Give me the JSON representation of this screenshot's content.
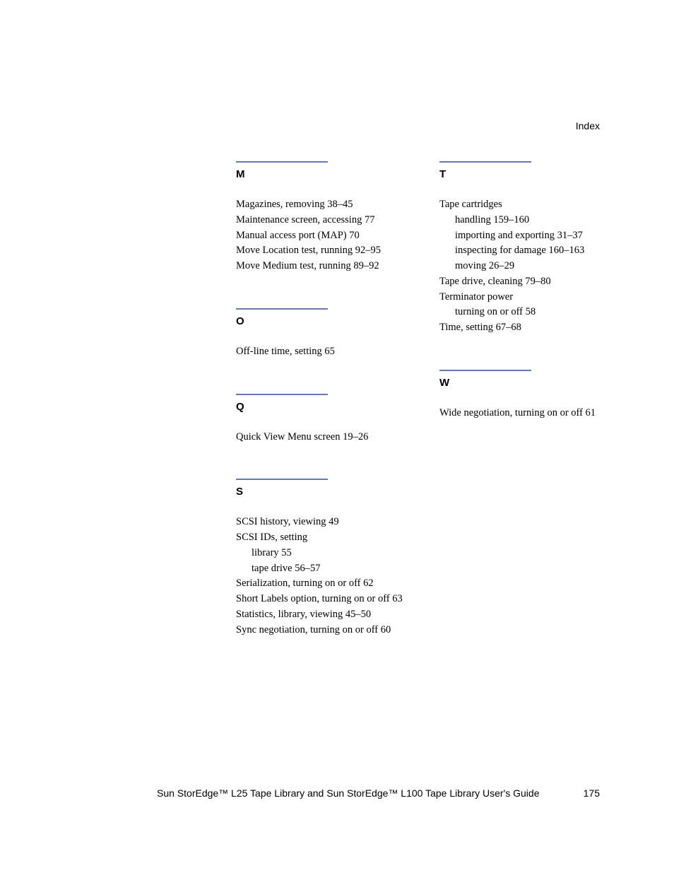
{
  "header": {
    "label": "Index"
  },
  "divider_color": "#6878b0",
  "sections": {
    "M": {
      "letter": "M",
      "entries": [
        {
          "text": "Magazines, removing 38–45",
          "type": "entry"
        },
        {
          "text": "Maintenance screen, accessing 77",
          "type": "entry"
        },
        {
          "text": "Manual access port (MAP) 70",
          "type": "entry"
        },
        {
          "text": "Move Location test, running 92–95",
          "type": "entry"
        },
        {
          "text": "Move Medium test, running 89–92",
          "type": "entry"
        }
      ]
    },
    "O": {
      "letter": "O",
      "entries": [
        {
          "text": "Off-line time, setting 65",
          "type": "entry"
        }
      ]
    },
    "Q": {
      "letter": "Q",
      "entries": [
        {
          "text": "Quick View Menu screen 19–26",
          "type": "entry"
        }
      ]
    },
    "S": {
      "letter": "S",
      "entries": [
        {
          "text": "SCSI history, viewing 49",
          "type": "entry"
        },
        {
          "text": "SCSI IDs, setting",
          "type": "entry"
        },
        {
          "text": "library 55",
          "type": "sub-entry"
        },
        {
          "text": "tape drive 56–57",
          "type": "sub-entry"
        },
        {
          "text": "Serialization, turning on or off 62",
          "type": "entry"
        },
        {
          "text": "Short Labels option, turning on or off 63",
          "type": "wrap-entry"
        },
        {
          "text": "Statistics, library, viewing 45–50",
          "type": "entry"
        },
        {
          "text": "Sync negotiation, turning on or off 60",
          "type": "entry"
        }
      ]
    },
    "T": {
      "letter": "T",
      "entries": [
        {
          "text": "Tape cartridges",
          "type": "entry"
        },
        {
          "text": "handling 159–160",
          "type": "sub-entry"
        },
        {
          "text": "importing and exporting 31–37",
          "type": "sub-entry"
        },
        {
          "text": "inspecting for damage 160–163",
          "type": "sub-entry"
        },
        {
          "text": "moving 26–29",
          "type": "sub-entry"
        },
        {
          "text": "Tape drive, cleaning 79–80",
          "type": "entry"
        },
        {
          "text": "Terminator power",
          "type": "entry"
        },
        {
          "text": "turning on or off 58",
          "type": "sub-entry"
        },
        {
          "text": "Time, setting 67–68",
          "type": "entry"
        }
      ]
    },
    "W": {
      "letter": "W",
      "entries": [
        {
          "text": "Wide negotiation, turning on or off 61",
          "type": "entry"
        }
      ]
    }
  },
  "footer": {
    "title": "Sun StorEdge™ L25 Tape Library and Sun StorEdge™ L100 Tape Library User's Guide",
    "page": "175"
  }
}
